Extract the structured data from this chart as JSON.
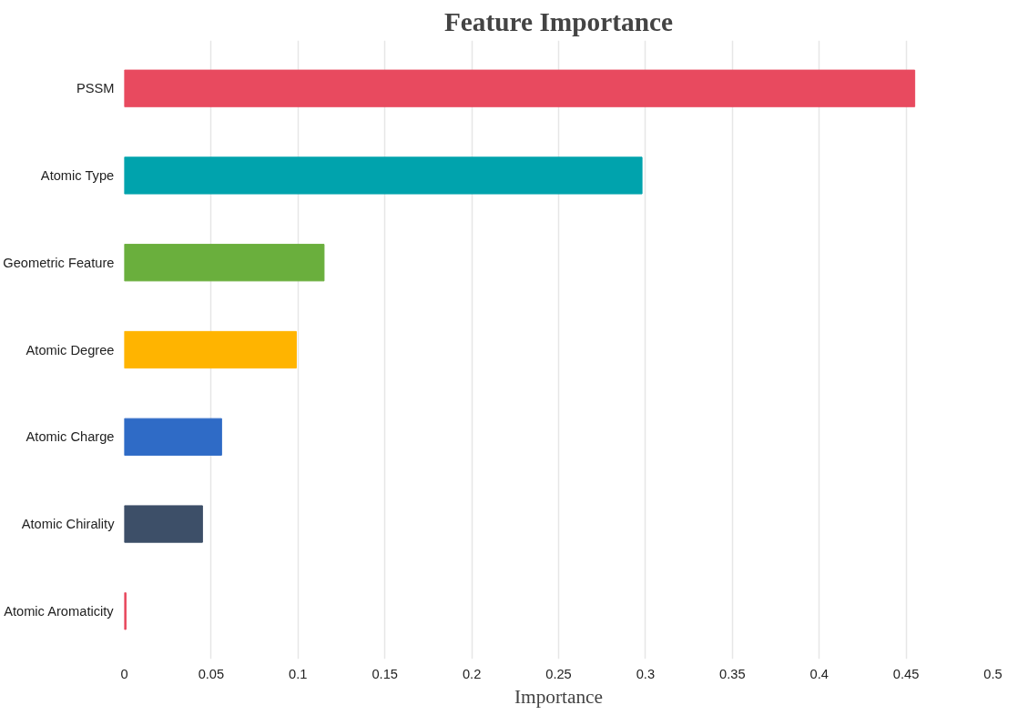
{
  "chart_data": {
    "type": "bar",
    "orientation": "horizontal",
    "title": "Feature Importance",
    "xlabel": "Importance",
    "categories": [
      "PSSM",
      "Atomic Type",
      "Geometric Feature",
      "Atomic Degree",
      "Atomic Charge",
      "Atomic Chirality",
      "Atomic Aromaticity"
    ],
    "values": [
      0.455,
      0.298,
      0.115,
      0.099,
      0.056,
      0.045,
      0.001
    ],
    "colors": [
      "#e84a5f",
      "#00a3ad",
      "#6aaf3d",
      "#ffb400",
      "#2f6bc6",
      "#3d4f68",
      "#e84a5f"
    ],
    "xlim": [
      0,
      0.5
    ],
    "xticks": [
      0,
      0.05,
      0.1,
      0.15,
      0.2,
      0.25,
      0.3,
      0.35,
      0.4,
      0.45,
      0.5
    ],
    "grid": "x"
  }
}
